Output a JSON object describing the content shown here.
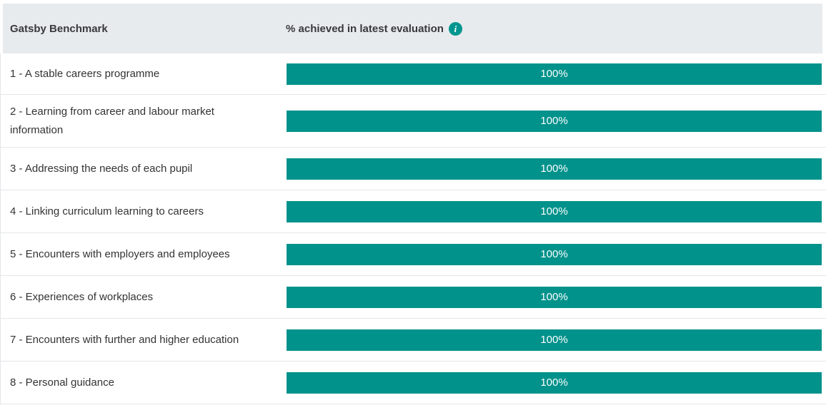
{
  "header": {
    "benchmark_column": "Gatsby Benchmark",
    "value_column": "% achieved in latest evaluation",
    "info_icon_glyph": "i"
  },
  "colors": {
    "bar": "#00928b",
    "header_background": "#e8ebee",
    "info_icon": "#00968f",
    "row_divider": "#e3e6e9",
    "bar_text": "#ffffff"
  },
  "benchmarks": [
    {
      "label": "1 - A stable careers programme",
      "value": 100,
      "value_label": "100%"
    },
    {
      "label": "2 - Learning from career and labour market information",
      "value": 100,
      "value_label": "100%"
    },
    {
      "label": "3 - Addressing the needs of each pupil",
      "value": 100,
      "value_label": "100%"
    },
    {
      "label": "4 - Linking curriculum learning to careers",
      "value": 100,
      "value_label": "100%"
    },
    {
      "label": "5 - Encounters with employers and employees",
      "value": 100,
      "value_label": "100%"
    },
    {
      "label": "6 - Experiences of workplaces",
      "value": 100,
      "value_label": "100%"
    },
    {
      "label": "7 - Encounters with further and higher education",
      "value": 100,
      "value_label": "100%"
    },
    {
      "label": "8 - Personal guidance",
      "value": 100,
      "value_label": "100%"
    }
  ],
  "chart_data": {
    "type": "bar",
    "orientation": "horizontal",
    "title": "",
    "xlabel": "% achieved in latest evaluation",
    "ylabel": "Gatsby Benchmark",
    "categories": [
      "1 - A stable careers programme",
      "2 - Learning from career and labour market information",
      "3 - Addressing the needs of each pupil",
      "4 - Linking curriculum learning to careers",
      "5 - Encounters with employers and employees",
      "6 - Experiences of workplaces",
      "7 - Encounters with further and higher education",
      "8 - Personal guidance"
    ],
    "values": [
      100,
      100,
      100,
      100,
      100,
      100,
      100,
      100
    ],
    "value_labels": [
      "100%",
      "100%",
      "100%",
      "100%",
      "100%",
      "100%",
      "100%",
      "100%"
    ],
    "xlim": [
      0,
      100
    ],
    "grid": false,
    "legend": false,
    "bar_color": "#00928b"
  }
}
